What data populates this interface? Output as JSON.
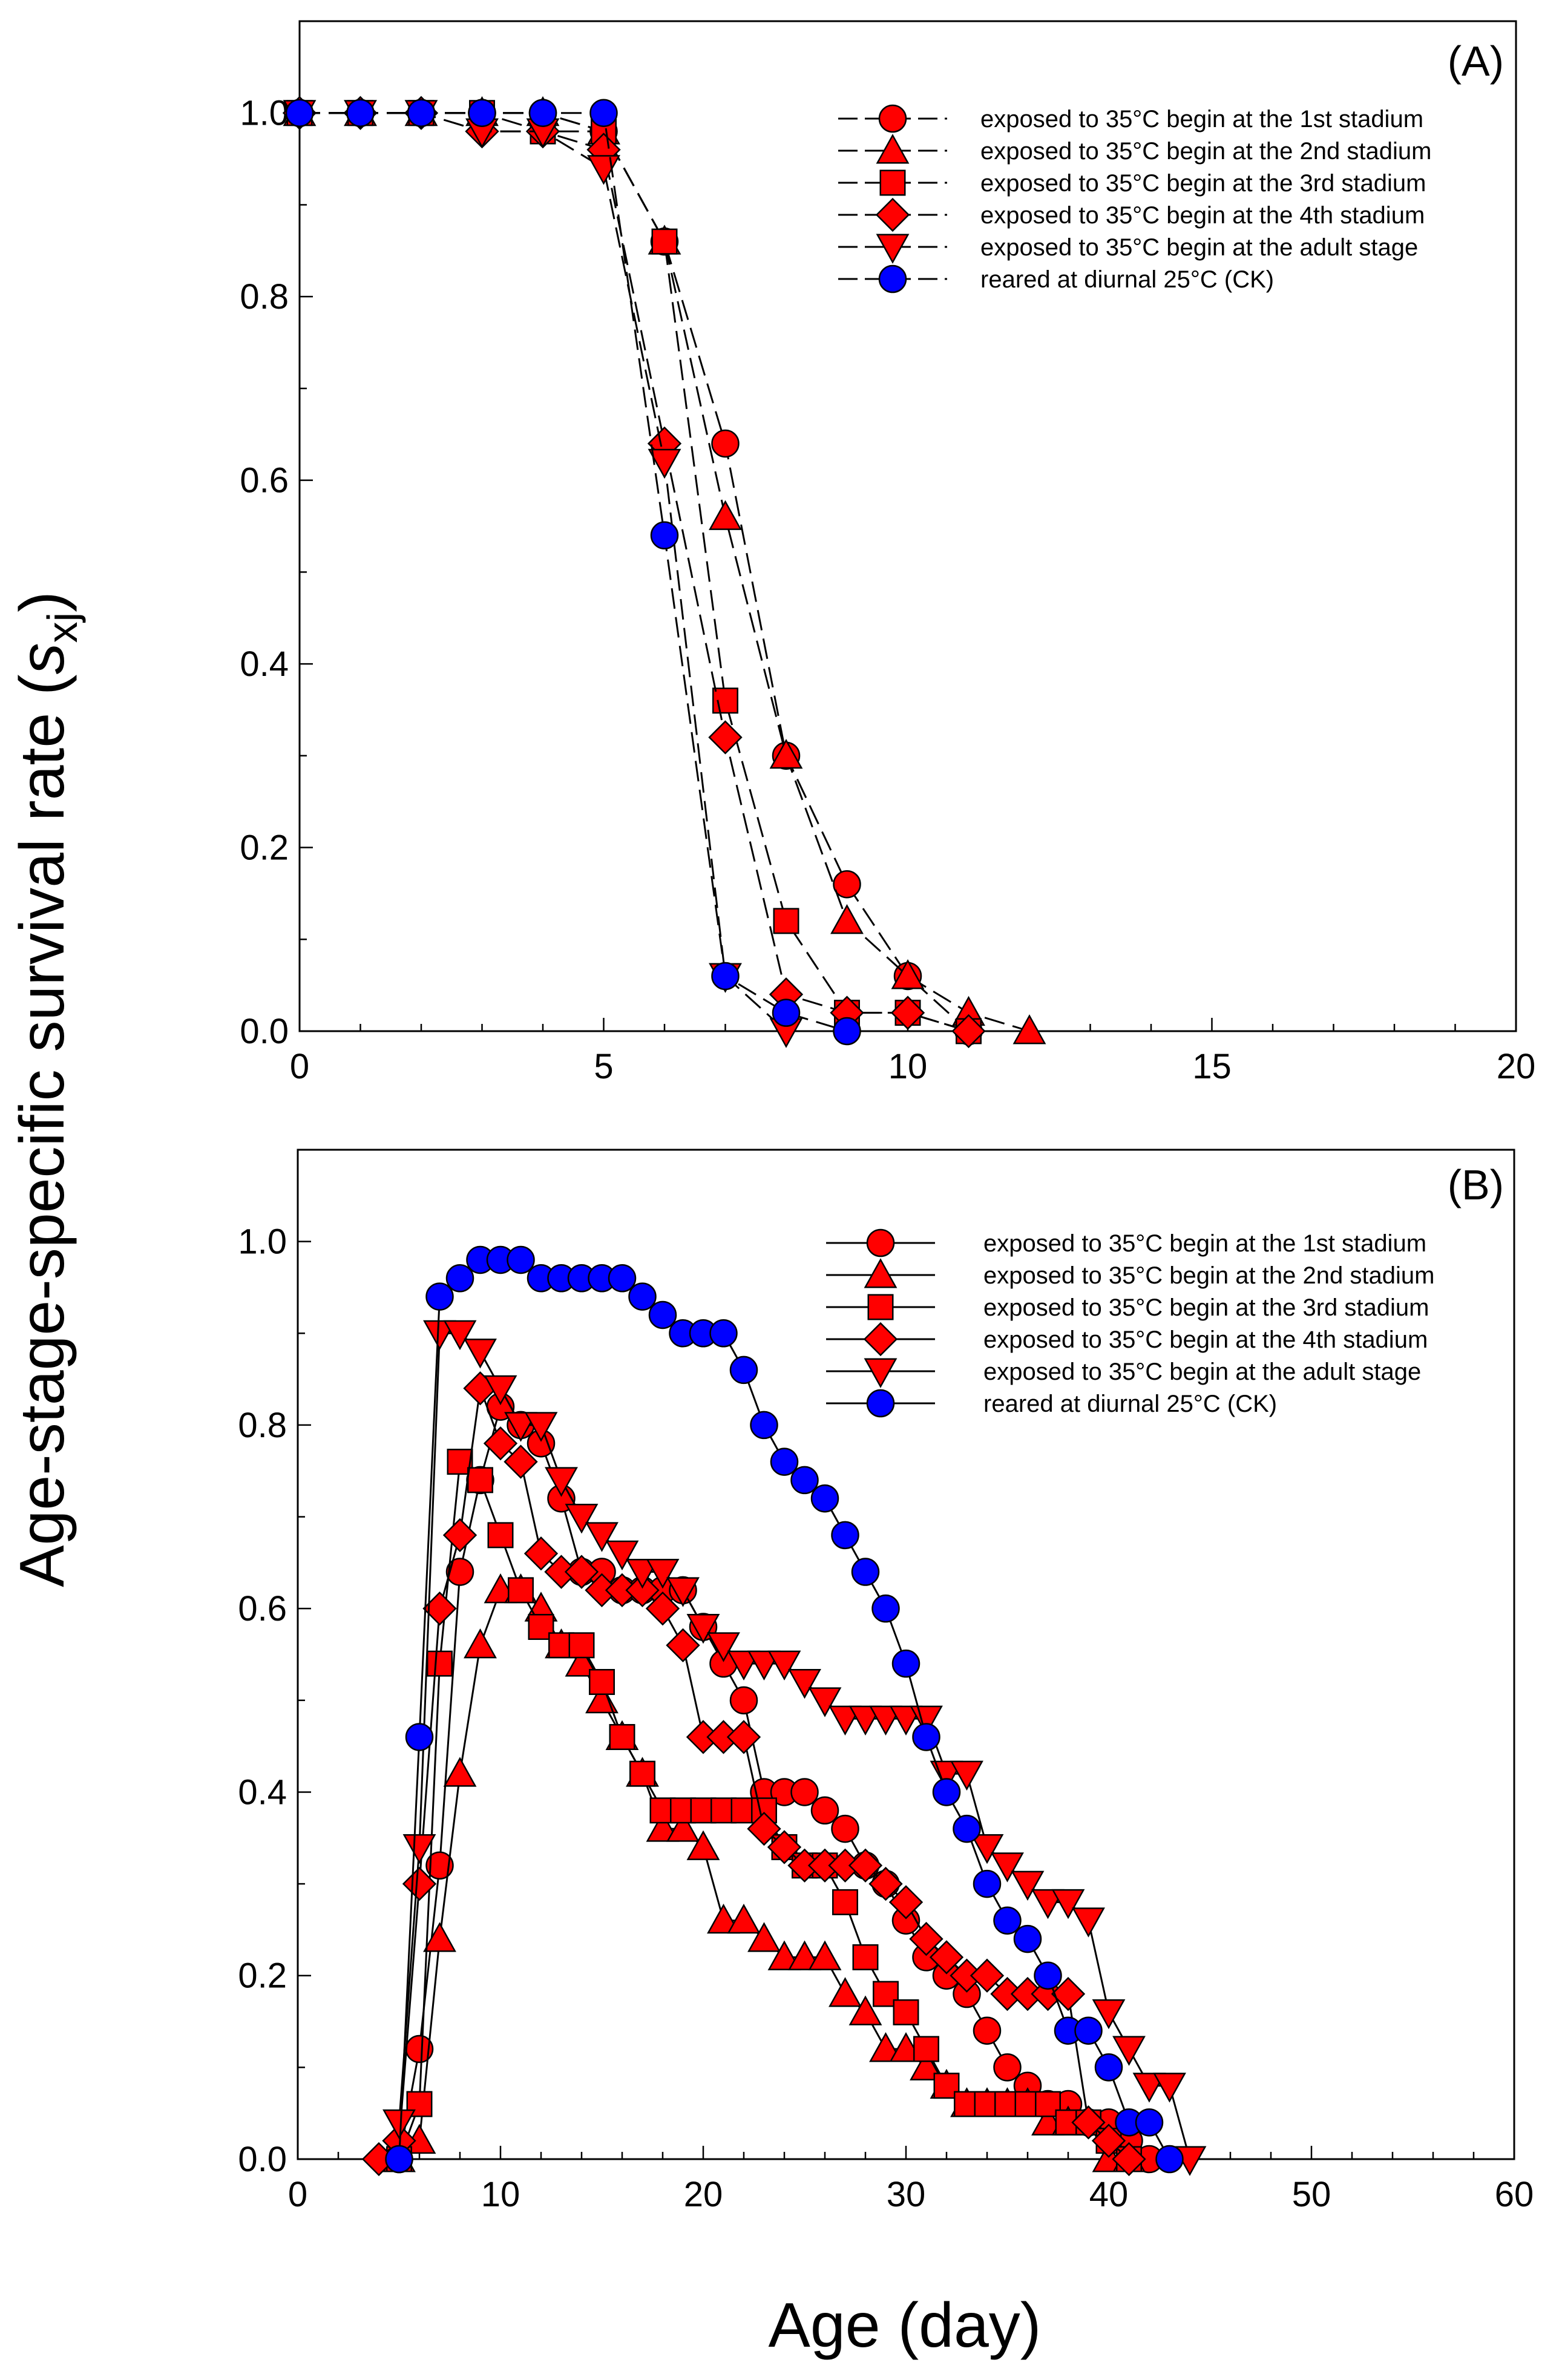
{
  "ylabel_main": "Age-stage-specific survival rate (",
  "ylabel_symbol": "s",
  "ylabel_sub": "xj",
  "ylabel_close": ")",
  "xlabel": "Age (day)",
  "colors": {
    "red": "#ff0000",
    "blue": "#0000ff",
    "line": "#000000"
  },
  "chart_data": [
    {
      "type": "line",
      "panel_label": "(A)",
      "xlim": [
        0,
        20
      ],
      "ylim": [
        0,
        1.1
      ],
      "xticks": [
        "0",
        "5",
        "10",
        "15",
        "20"
      ],
      "yticks": [
        "0.0",
        "0.2",
        "0.4",
        "0.6",
        "0.8",
        "1.0"
      ],
      "line_style": "dashed",
      "legend_position": "top-right",
      "series": [
        {
          "name": "exposed to 35°C  begin at the 1st stadium",
          "marker": "circle",
          "color": "red",
          "x": [
            0,
            1,
            2,
            3,
            4,
            5,
            6,
            7,
            8,
            9,
            10,
            11
          ],
          "y": [
            1.0,
            1.0,
            1.0,
            1.0,
            1.0,
            0.98,
            0.86,
            0.64,
            0.3,
            0.16,
            0.06,
            0.0
          ]
        },
        {
          "name": "exposed to 35°C  begin at the 2nd stadium",
          "marker": "triangle-up",
          "color": "red",
          "x": [
            0,
            1,
            2,
            3,
            4,
            5,
            6,
            7,
            8,
            9,
            10,
            11,
            12
          ],
          "y": [
            1.0,
            1.0,
            1.0,
            1.0,
            1.0,
            0.98,
            0.86,
            0.56,
            0.3,
            0.12,
            0.06,
            0.02,
            0.0
          ]
        },
        {
          "name": "exposed to 35°C  begin at the 3rd stadium",
          "marker": "square",
          "color": "red",
          "x": [
            0,
            1,
            2,
            3,
            4,
            5,
            6,
            7,
            8,
            9,
            10,
            11
          ],
          "y": [
            1.0,
            1.0,
            1.0,
            1.0,
            0.98,
            0.98,
            0.86,
            0.36,
            0.12,
            0.02,
            0.02,
            0.0
          ]
        },
        {
          "name": "exposed to 35°C  begin at the 4th stadium",
          "marker": "diamond",
          "color": "red",
          "x": [
            0,
            1,
            2,
            3,
            4,
            5,
            6,
            7,
            8,
            9,
            10,
            11
          ],
          "y": [
            1.0,
            1.0,
            1.0,
            0.98,
            0.98,
            0.96,
            0.64,
            0.32,
            0.04,
            0.02,
            0.02,
            0.0
          ]
        },
        {
          "name": "exposed to 35°C  begin at the adult stage",
          "marker": "triangle-down",
          "color": "red",
          "x": [
            0,
            1,
            2,
            3,
            4,
            5,
            6,
            7,
            8
          ],
          "y": [
            1.0,
            1.0,
            1.0,
            0.98,
            0.98,
            0.94,
            0.62,
            0.06,
            0.0
          ]
        },
        {
          "name": "reared at diurnal 25°C (CK)",
          "marker": "circle",
          "color": "blue",
          "x": [
            0,
            1,
            2,
            3,
            4,
            5,
            6,
            7,
            8,
            9
          ],
          "y": [
            1.0,
            1.0,
            1.0,
            1.0,
            1.0,
            1.0,
            0.54,
            0.06,
            0.02,
            0.0
          ]
        }
      ]
    },
    {
      "type": "line",
      "panel_label": "(B)",
      "xlim": [
        0,
        60
      ],
      "ylim": [
        0,
        1.1
      ],
      "xticks": [
        "0",
        "10",
        "20",
        "30",
        "40",
        "50",
        "60"
      ],
      "yticks": [
        "0.0",
        "0.2",
        "0.4",
        "0.6",
        "0.8",
        "1.0"
      ],
      "line_style": "solid",
      "legend_position": "top-right",
      "series": [
        {
          "name": "exposed to 35°C  begin at the 1st stadium",
          "marker": "circle",
          "color": "red",
          "x": [
            5,
            6,
            7,
            8,
            9,
            10,
            11,
            12,
            13,
            14,
            15,
            16,
            17,
            18,
            19,
            20,
            21,
            22,
            23,
            24,
            25,
            26,
            27,
            28,
            29,
            30,
            31,
            32,
            33,
            34,
            35,
            36,
            37,
            38,
            39,
            40,
            41,
            42
          ],
          "y": [
            0.0,
            0.12,
            0.32,
            0.64,
            0.74,
            0.82,
            0.8,
            0.78,
            0.72,
            0.64,
            0.64,
            0.62,
            0.62,
            0.62,
            0.62,
            0.58,
            0.54,
            0.5,
            0.4,
            0.4,
            0.4,
            0.38,
            0.36,
            0.32,
            0.3,
            0.26,
            0.22,
            0.2,
            0.18,
            0.14,
            0.1,
            0.08,
            0.06,
            0.06,
            0.04,
            0.04,
            0.02,
            0.0
          ]
        },
        {
          "name": "exposed to 35°C  begin at the 2nd stadium",
          "marker": "triangle-up",
          "color": "red",
          "x": [
            5,
            6,
            7,
            8,
            9,
            10,
            11,
            12,
            13,
            14,
            15,
            16,
            17,
            18,
            19,
            20,
            21,
            22,
            23,
            24,
            25,
            26,
            27,
            28,
            29,
            30,
            31,
            32,
            33,
            34,
            35,
            36,
            37,
            38,
            39,
            40,
            41
          ],
          "y": [
            0.0,
            0.02,
            0.24,
            0.42,
            0.56,
            0.62,
            0.62,
            0.6,
            0.56,
            0.54,
            0.5,
            0.46,
            0.42,
            0.36,
            0.36,
            0.34,
            0.26,
            0.26,
            0.24,
            0.22,
            0.22,
            0.22,
            0.18,
            0.16,
            0.12,
            0.12,
            0.1,
            0.08,
            0.06,
            0.06,
            0.06,
            0.06,
            0.04,
            0.04,
            0.04,
            0.0,
            0.0
          ]
        },
        {
          "name": "exposed to 35°C  begin at the 3rd stadium",
          "marker": "square",
          "color": "red",
          "x": [
            5,
            6,
            7,
            8,
            9,
            10,
            11,
            12,
            13,
            14,
            15,
            16,
            17,
            18,
            19,
            20,
            21,
            22,
            23,
            24,
            25,
            26,
            27,
            28,
            29,
            30,
            31,
            32,
            33,
            34,
            35,
            36,
            37,
            38,
            39,
            40,
            41
          ],
          "y": [
            0.0,
            0.06,
            0.54,
            0.76,
            0.74,
            0.68,
            0.62,
            0.58,
            0.56,
            0.56,
            0.52,
            0.46,
            0.42,
            0.38,
            0.38,
            0.38,
            0.38,
            0.38,
            0.38,
            0.34,
            0.32,
            0.32,
            0.28,
            0.22,
            0.18,
            0.16,
            0.12,
            0.08,
            0.06,
            0.06,
            0.06,
            0.06,
            0.06,
            0.04,
            0.04,
            0.02,
            0.0
          ]
        },
        {
          "name": "exposed to 35°C  begin at the 4th stadium",
          "marker": "diamond",
          "color": "red",
          "x": [
            4,
            5,
            6,
            7,
            8,
            9,
            10,
            11,
            12,
            13,
            14,
            15,
            16,
            17,
            18,
            19,
            20,
            21,
            22,
            23,
            24,
            25,
            26,
            27,
            28,
            29,
            30,
            31,
            32,
            33,
            34,
            35,
            36,
            37,
            38,
            39,
            40,
            41
          ],
          "y": [
            0.0,
            0.02,
            0.3,
            0.6,
            0.68,
            0.84,
            0.78,
            0.76,
            0.66,
            0.64,
            0.64,
            0.62,
            0.62,
            0.62,
            0.6,
            0.56,
            0.46,
            0.46,
            0.46,
            0.36,
            0.34,
            0.32,
            0.32,
            0.32,
            0.32,
            0.3,
            0.28,
            0.24,
            0.22,
            0.2,
            0.2,
            0.18,
            0.18,
            0.18,
            0.18,
            0.04,
            0.02,
            0.0
          ]
        },
        {
          "name": "exposed to 35°C  begin at the adult stage",
          "marker": "triangle-down",
          "color": "red",
          "x": [
            5,
            6,
            7,
            8,
            9,
            10,
            11,
            12,
            13,
            14,
            15,
            16,
            17,
            18,
            19,
            20,
            21,
            22,
            23,
            24,
            25,
            26,
            27,
            28,
            29,
            30,
            31,
            32,
            33,
            34,
            35,
            36,
            37,
            38,
            39,
            40,
            41,
            42,
            43,
            44
          ],
          "y": [
            0.04,
            0.34,
            0.9,
            0.9,
            0.88,
            0.84,
            0.8,
            0.8,
            0.74,
            0.7,
            0.68,
            0.66,
            0.64,
            0.64,
            0.62,
            0.58,
            0.56,
            0.54,
            0.54,
            0.54,
            0.52,
            0.5,
            0.48,
            0.48,
            0.48,
            0.48,
            0.48,
            0.42,
            0.42,
            0.34,
            0.32,
            0.3,
            0.28,
            0.28,
            0.26,
            0.16,
            0.12,
            0.08,
            0.08,
            0.0
          ]
        },
        {
          "name": "reared at diurnal 25°C (CK)",
          "marker": "circle",
          "color": "blue",
          "x": [
            5,
            6,
            7,
            8,
            9,
            10,
            11,
            12,
            13,
            14,
            15,
            16,
            17,
            18,
            19,
            20,
            21,
            22,
            23,
            24,
            25,
            26,
            27,
            28,
            29,
            30,
            31,
            32,
            33,
            34,
            35,
            36,
            37,
            38,
            39,
            40,
            41,
            42,
            43
          ],
          "y": [
            0.0,
            0.46,
            0.94,
            0.96,
            0.98,
            0.98,
            0.98,
            0.96,
            0.96,
            0.96,
            0.96,
            0.96,
            0.94,
            0.92,
            0.9,
            0.9,
            0.9,
            0.86,
            0.8,
            0.76,
            0.74,
            0.72,
            0.68,
            0.64,
            0.6,
            0.54,
            0.46,
            0.4,
            0.36,
            0.3,
            0.26,
            0.24,
            0.2,
            0.14,
            0.14,
            0.1,
            0.04,
            0.04,
            0.0
          ]
        }
      ]
    }
  ]
}
